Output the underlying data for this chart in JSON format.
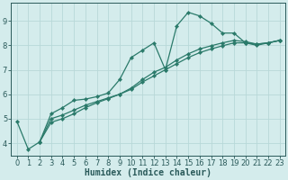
{
  "xlabel": "Humidex (Indice chaleur)",
  "ylabel": "",
  "bg_color": "#d4ecec",
  "grid_color": "#b8d8d8",
  "line_color": "#2a7a6a",
  "xlim": [
    -0.5,
    23.5
  ],
  "ylim": [
    3.5,
    9.75
  ],
  "xticks": [
    0,
    1,
    2,
    3,
    4,
    5,
    6,
    7,
    8,
    9,
    10,
    11,
    12,
    13,
    14,
    15,
    16,
    17,
    18,
    19,
    20,
    21,
    22,
    23
  ],
  "yticks": [
    4,
    5,
    6,
    7,
    8,
    9
  ],
  "line1_x": [
    0,
    1,
    2,
    3,
    4,
    5,
    6,
    7,
    8,
    9,
    10,
    11,
    12,
    13,
    14,
    15,
    16,
    17,
    18,
    19,
    20,
    21,
    22,
    23
  ],
  "line1_y": [
    4.9,
    3.75,
    4.05,
    5.2,
    5.45,
    5.75,
    5.8,
    5.9,
    6.05,
    6.6,
    7.5,
    7.8,
    8.1,
    7.0,
    8.8,
    9.35,
    9.2,
    8.9,
    8.5,
    8.5,
    8.1,
    8.0,
    8.1,
    8.2
  ],
  "line2_x": [
    2,
    3,
    4,
    5,
    6,
    7,
    8,
    9,
    10,
    11,
    12,
    13,
    14,
    15,
    16,
    17,
    18,
    19,
    20,
    21,
    22,
    23
  ],
  "line2_y": [
    4.05,
    5.0,
    5.15,
    5.35,
    5.55,
    5.7,
    5.85,
    6.0,
    6.2,
    6.5,
    6.75,
    7.0,
    7.25,
    7.5,
    7.7,
    7.85,
    7.98,
    8.1,
    8.1,
    8.05,
    8.1,
    8.2
  ],
  "line3_x": [
    2,
    3,
    4,
    5,
    6,
    7,
    8,
    9,
    10,
    11,
    12,
    13,
    14,
    15,
    16,
    17,
    18,
    19,
    20,
    21,
    22,
    23
  ],
  "line3_y": [
    4.05,
    4.85,
    5.0,
    5.2,
    5.45,
    5.65,
    5.82,
    6.0,
    6.25,
    6.6,
    6.9,
    7.1,
    7.4,
    7.65,
    7.85,
    7.98,
    8.1,
    8.2,
    8.15,
    8.05,
    8.1,
    8.2
  ],
  "marker": "D",
  "marker_size": 2.2,
  "linewidth": 0.9,
  "xlabel_fontsize": 7,
  "tick_fontsize": 6,
  "tick_color": "#2a5a5a",
  "axis_color": "#2a5a5a"
}
